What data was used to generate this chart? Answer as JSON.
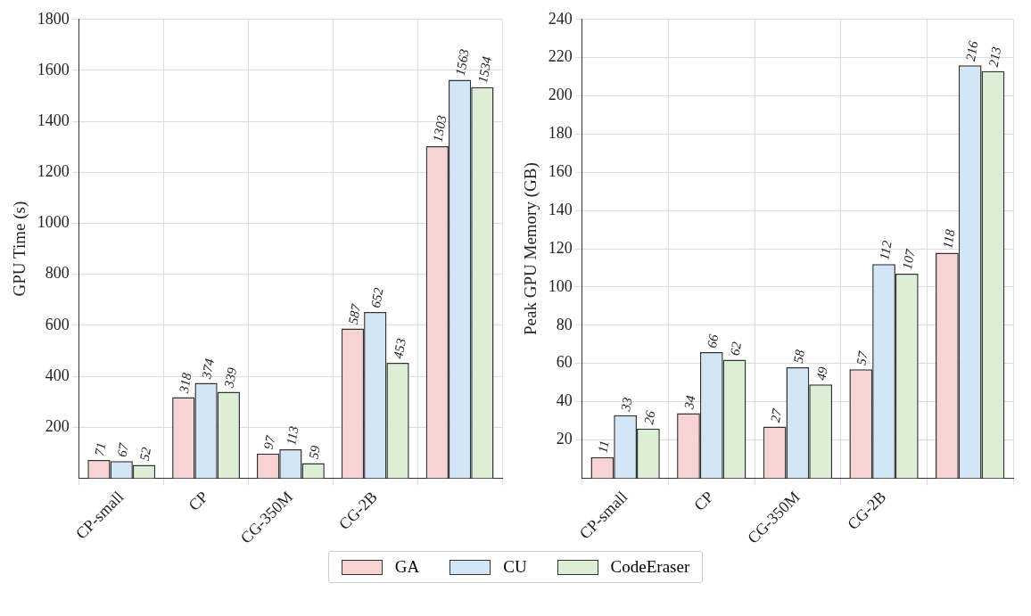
{
  "chart_data": [
    {
      "type": "bar",
      "ylabel": "GPU Time (s)",
      "categories": [
        "CP-small",
        "CP",
        "CG-350M",
        "CG-2B",
        null
      ],
      "ylim": [
        0,
        1800
      ],
      "yticks": [
        200,
        400,
        600,
        800,
        1000,
        1200,
        1400,
        1600,
        1800
      ],
      "grid": true,
      "data_labels": true,
      "legend": "bottom",
      "series": [
        {
          "name": "GA",
          "color": "#f8d3d3",
          "values": [
            71,
            318,
            97,
            587,
            1303
          ]
        },
        {
          "name": "CU",
          "color": "#d3e6f7",
          "values": [
            67,
            374,
            113,
            652,
            1563
          ]
        },
        {
          "name": "CodeEraser",
          "color": "#dcefd6",
          "values": [
            52,
            339,
            59,
            453,
            1534
          ]
        }
      ]
    },
    {
      "type": "bar",
      "ylabel": "Peak GPU Memory (GB)",
      "categories": [
        "CP-small",
        "CP",
        "CG-350M",
        "CG-2B",
        null
      ],
      "ylim": [
        0,
        240
      ],
      "yticks": [
        20,
        40,
        60,
        80,
        100,
        120,
        140,
        160,
        180,
        200,
        220,
        240
      ],
      "grid": true,
      "data_labels": true,
      "series": [
        {
          "color": "#f8d3d3",
          "values": [
            11,
            34,
            27,
            57,
            118
          ]
        },
        {
          "color": "#d3e6f7",
          "values": [
            33,
            66,
            58,
            112,
            216
          ]
        },
        {
          "color": "#dcefd6",
          "values": [
            26,
            62,
            49,
            107,
            213
          ]
        }
      ]
    }
  ]
}
